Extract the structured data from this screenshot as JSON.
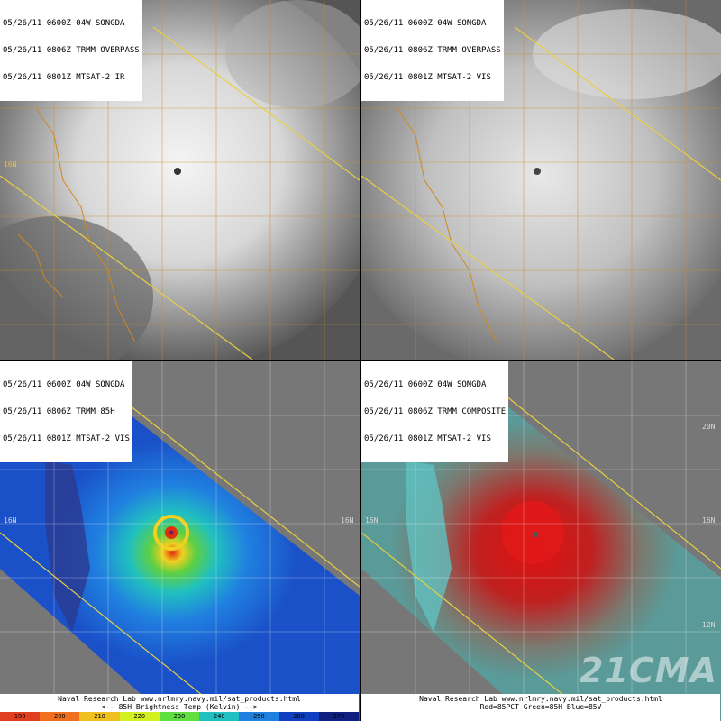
{
  "panels": [
    {
      "lines": [
        "05/26/11 0600Z 04W SONGDA",
        "05/26/11 0806Z TRMM OVERPASS",
        "05/26/11 0801Z MTSAT-2 IR"
      ]
    },
    {
      "lines": [
        "05/26/11 0600Z 04W SONGDA",
        "05/26/11 0806Z TRMM OVERPASS",
        "05/26/11 0801Z MTSAT-2 VIS"
      ]
    },
    {
      "lines": [
        "05/26/11 0600Z 04W SONGDA",
        "05/26/11 0806Z TRMM 85H",
        "05/26/11 0801Z MTSAT-2 VIS"
      ]
    },
    {
      "lines": [
        "05/26/11 0600Z 04W SONGDA",
        "05/26/11 0806Z TRMM COMPOSITE",
        "05/26/11 0801Z MTSAT-2 VIS"
      ]
    }
  ],
  "lat_labels": {
    "l16": "16N",
    "l20": "20N",
    "l12": "12N"
  },
  "footer_left": {
    "credit": "Naval Research Lab  www.nrlmry.navy.mil/sat_products.html",
    "caption": "<--   85H Brightness Temp (Kelvin)   -->",
    "scale": [
      "190",
      "200",
      "210",
      "220",
      "230",
      "240",
      "250",
      "260",
      "270"
    ],
    "scale_colors": [
      "#e04020",
      "#f07020",
      "#f0c020",
      "#d0f020",
      "#60e040",
      "#20c0c0",
      "#2080e0",
      "#1040c0",
      "#102080"
    ]
  },
  "footer_right": {
    "credit": "Naval Research Lab  www.nrlmry.navy.mil/sat_products.html",
    "caption": "Red=85PCT  Green=85H  Blue=85V"
  },
  "watermark": "21CMA"
}
